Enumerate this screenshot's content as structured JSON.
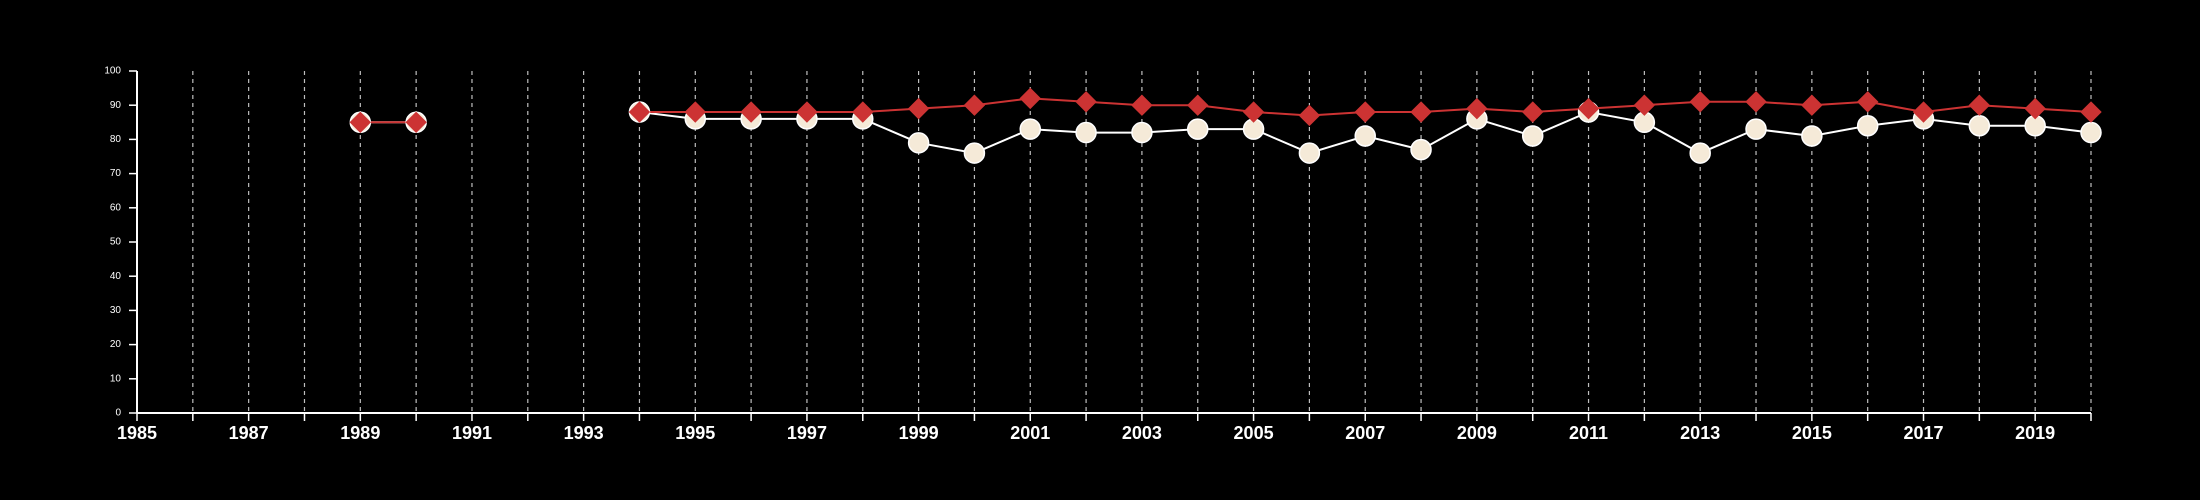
{
  "chart_data": {
    "type": "line",
    "title": "",
    "xlabel": "",
    "ylabel": "",
    "xlim": [
      1985,
      2020
    ],
    "ylim": [
      0,
      100
    ],
    "y_ticks": [
      0,
      10,
      20,
      30,
      40,
      50,
      60,
      70,
      80,
      90,
      100
    ],
    "x_tick_labels": [
      "1985",
      "1987",
      "1989",
      "1991",
      "1993",
      "1995",
      "1997",
      "1999",
      "2001",
      "2003",
      "2005",
      "2007",
      "2009",
      "2011",
      "2013",
      "2015",
      "2017",
      "2019"
    ],
    "grid": "vertical dashed",
    "legend": "none",
    "colors": {
      "background": "#000000",
      "axis": "#ffffff",
      "grid": "#bfbfbf",
      "series_red": "#cc3333",
      "series_cream": "#f5ead8"
    },
    "series": [
      {
        "marker": "diamond",
        "color": "#cc3333",
        "segments": [
          [
            [
              1989,
              85
            ],
            [
              1990,
              85
            ]
          ],
          [
            [
              1994,
              88
            ],
            [
              1995,
              88
            ],
            [
              1996,
              88
            ],
            [
              1997,
              88
            ],
            [
              1998,
              88
            ],
            [
              1999,
              89
            ],
            [
              2000,
              90
            ],
            [
              2001,
              92
            ],
            [
              2002,
              91
            ],
            [
              2003,
              90
            ],
            [
              2004,
              90
            ],
            [
              2005,
              88
            ],
            [
              2006,
              87
            ],
            [
              2007,
              88
            ],
            [
              2008,
              88
            ],
            [
              2009,
              89
            ],
            [
              2010,
              88
            ],
            [
              2011,
              89
            ],
            [
              2012,
              90
            ],
            [
              2013,
              91
            ],
            [
              2014,
              91
            ],
            [
              2015,
              90
            ],
            [
              2016,
              91
            ],
            [
              2017,
              88
            ],
            [
              2018,
              90
            ],
            [
              2019,
              89
            ],
            [
              2020,
              88
            ]
          ]
        ]
      },
      {
        "marker": "circle",
        "color": "#f5ead8",
        "segments": [
          [
            [
              1989,
              85
            ],
            [
              1990,
              85
            ]
          ],
          [
            [
              1994,
              88
            ],
            [
              1995,
              86
            ],
            [
              1996,
              86
            ],
            [
              1997,
              86
            ],
            [
              1998,
              86
            ],
            [
              1999,
              79
            ],
            [
              2000,
              76
            ],
            [
              2001,
              83
            ],
            [
              2002,
              82
            ],
            [
              2003,
              82
            ],
            [
              2004,
              83
            ],
            [
              2005,
              83
            ],
            [
              2006,
              76
            ],
            [
              2007,
              81
            ],
            [
              2008,
              77
            ],
            [
              2009,
              86
            ],
            [
              2010,
              81
            ],
            [
              2011,
              88
            ],
            [
              2012,
              85
            ],
            [
              2013,
              76
            ],
            [
              2014,
              83
            ],
            [
              2015,
              81
            ],
            [
              2016,
              84
            ],
            [
              2017,
              86
            ],
            [
              2018,
              84
            ],
            [
              2019,
              84
            ],
            [
              2020,
              82
            ]
          ]
        ]
      }
    ]
  }
}
